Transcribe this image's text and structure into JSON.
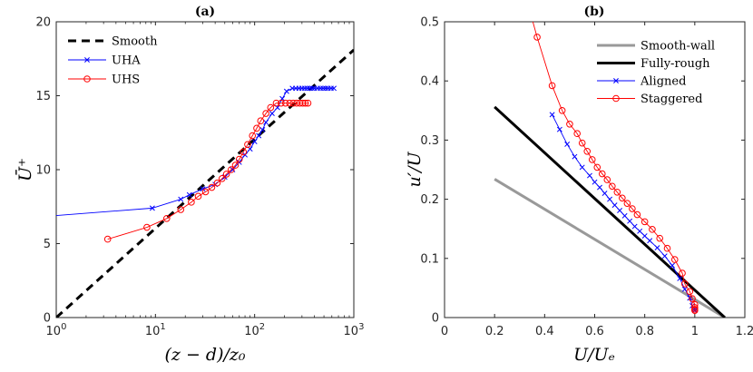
{
  "chart_data": [
    {
      "type": "line",
      "title": "(a)",
      "xlabel": "(z − d)/z₀",
      "ylabel": "Ū⁺",
      "xscale": "log",
      "xlim": [
        1,
        1000
      ],
      "ylim": [
        0,
        20
      ],
      "xticks": [
        1,
        10,
        100,
        1000
      ],
      "xtick_labels": [
        [
          "10",
          "0"
        ],
        [
          "10",
          "1"
        ],
        [
          "10",
          "2"
        ],
        [
          "10",
          "3"
        ]
      ],
      "yticks": [
        0,
        5,
        10,
        15,
        20
      ],
      "ytick_labels": [
        "0",
        "5",
        "10",
        "15",
        "20"
      ],
      "grid": false,
      "legend_position": "top-left",
      "series": [
        {
          "name": "Smooth",
          "color": "#000000",
          "style": "dashed",
          "marker": "none",
          "x": [
            1,
            1000
          ],
          "y": [
            0,
            18.1
          ]
        },
        {
          "name": "UHA",
          "color": "#0000ff",
          "style": "solid",
          "marker": "x",
          "x": [
            1,
            9.3,
            18,
            22,
            30,
            40,
            50,
            60,
            70,
            80,
            90,
            100,
            110,
            120,
            130,
            150,
            170,
            190,
            210,
            240,
            260,
            280,
            300,
            320,
            340,
            360,
            380,
            400,
            430,
            460,
            490,
            520,
            550,
            590,
            630
          ],
          "y": [
            6.9,
            7.4,
            8.0,
            8.3,
            8.7,
            9.0,
            9.5,
            10.0,
            10.5,
            11.0,
            11.4,
            11.9,
            12.3,
            12.7,
            13.2,
            13.8,
            14.2,
            14.8,
            15.3,
            15.5,
            15.5,
            15.5,
            15.5,
            15.5,
            15.5,
            15.5,
            15.5,
            15.5,
            15.5,
            15.5,
            15.5,
            15.5,
            15.5,
            15.5,
            15.5
          ],
          "mark_from_index": 1
        },
        {
          "name": "UHS",
          "color": "#ff0000",
          "style": "solid",
          "marker": "o",
          "x": [
            3.3,
            8.2,
            13,
            18,
            23,
            27,
            32,
            37,
            42,
            47,
            52,
            58,
            64,
            70,
            77,
            85,
            95,
            105,
            115,
            130,
            145,
            165,
            185,
            205,
            225,
            245,
            265,
            285,
            305,
            325,
            345
          ],
          "y": [
            5.3,
            6.1,
            6.7,
            7.3,
            7.8,
            8.2,
            8.5,
            8.8,
            9.1,
            9.4,
            9.7,
            10.0,
            10.3,
            10.7,
            11.2,
            11.7,
            12.3,
            12.8,
            13.3,
            13.8,
            14.2,
            14.5,
            14.5,
            14.5,
            14.5,
            14.5,
            14.5,
            14.5,
            14.5,
            14.5,
            14.5
          ],
          "mark_from_index": 0
        }
      ]
    },
    {
      "type": "line",
      "title": "(b)",
      "xlabel": "U/Uₑ",
      "ylabel": "u′/U",
      "xlim": [
        0,
        1.2
      ],
      "ylim": [
        0,
        0.5
      ],
      "xticks": [
        0,
        0.2,
        0.4,
        0.6,
        0.8,
        1,
        1.2
      ],
      "xtick_labels": [
        "0",
        "0.2",
        "0.4",
        "0.6",
        "0.8",
        "1",
        "1.2"
      ],
      "yticks": [
        0,
        0.1,
        0.2,
        0.3,
        0.4,
        0.5
      ],
      "ytick_labels": [
        "0",
        "0.1",
        "0.2",
        "0.3",
        "0.4",
        "0.5"
      ],
      "grid": false,
      "legend_position": "top-right",
      "series": [
        {
          "name": "Smooth-wall",
          "color": "#999999",
          "style": "solid",
          "marker": "none",
          "x": [
            0.2,
            1.12
          ],
          "y": [
            0.234,
            0
          ]
        },
        {
          "name": "Fully-rough",
          "color": "#000000",
          "style": "solid",
          "marker": "none",
          "x": [
            0.2,
            1.12
          ],
          "y": [
            0.356,
            0
          ]
        },
        {
          "name": "Aligned",
          "color": "#0000ff",
          "style": "solid",
          "marker": "x",
          "x": [
            0.43,
            0.46,
            0.49,
            0.52,
            0.55,
            0.58,
            0.6,
            0.62,
            0.64,
            0.66,
            0.68,
            0.7,
            0.72,
            0.74,
            0.76,
            0.78,
            0.8,
            0.82,
            0.85,
            0.88,
            0.91,
            0.94,
            0.96,
            0.98,
            0.99,
            1.0,
            1.0
          ],
          "y": [
            0.343,
            0.318,
            0.293,
            0.272,
            0.254,
            0.24,
            0.229,
            0.22,
            0.21,
            0.2,
            0.19,
            0.181,
            0.172,
            0.163,
            0.154,
            0.146,
            0.138,
            0.13,
            0.118,
            0.104,
            0.088,
            0.066,
            0.048,
            0.033,
            0.02,
            0.015,
            0.012
          ]
        },
        {
          "name": "Staggered",
          "color": "#ff0000",
          "style": "solid",
          "marker": "o",
          "x": [
            0.32,
            0.37,
            0.43,
            0.47,
            0.5,
            0.53,
            0.55,
            0.57,
            0.59,
            0.61,
            0.63,
            0.65,
            0.67,
            0.69,
            0.71,
            0.73,
            0.75,
            0.77,
            0.8,
            0.83,
            0.86,
            0.89,
            0.92,
            0.95,
            0.96,
            0.98,
            0.99,
            1.0,
            1.0,
            1.0,
            1.0
          ],
          "y": [
            0.55,
            0.474,
            0.392,
            0.35,
            0.327,
            0.311,
            0.295,
            0.281,
            0.267,
            0.254,
            0.243,
            0.233,
            0.222,
            0.212,
            0.202,
            0.193,
            0.184,
            0.174,
            0.162,
            0.149,
            0.134,
            0.117,
            0.098,
            0.075,
            0.057,
            0.044,
            0.032,
            0.022,
            0.017,
            0.014,
            0.012
          ],
          "marker_min_y": 0,
          "marker_max_y": 0.5,
          "mark_from_index": 1
        }
      ]
    }
  ]
}
